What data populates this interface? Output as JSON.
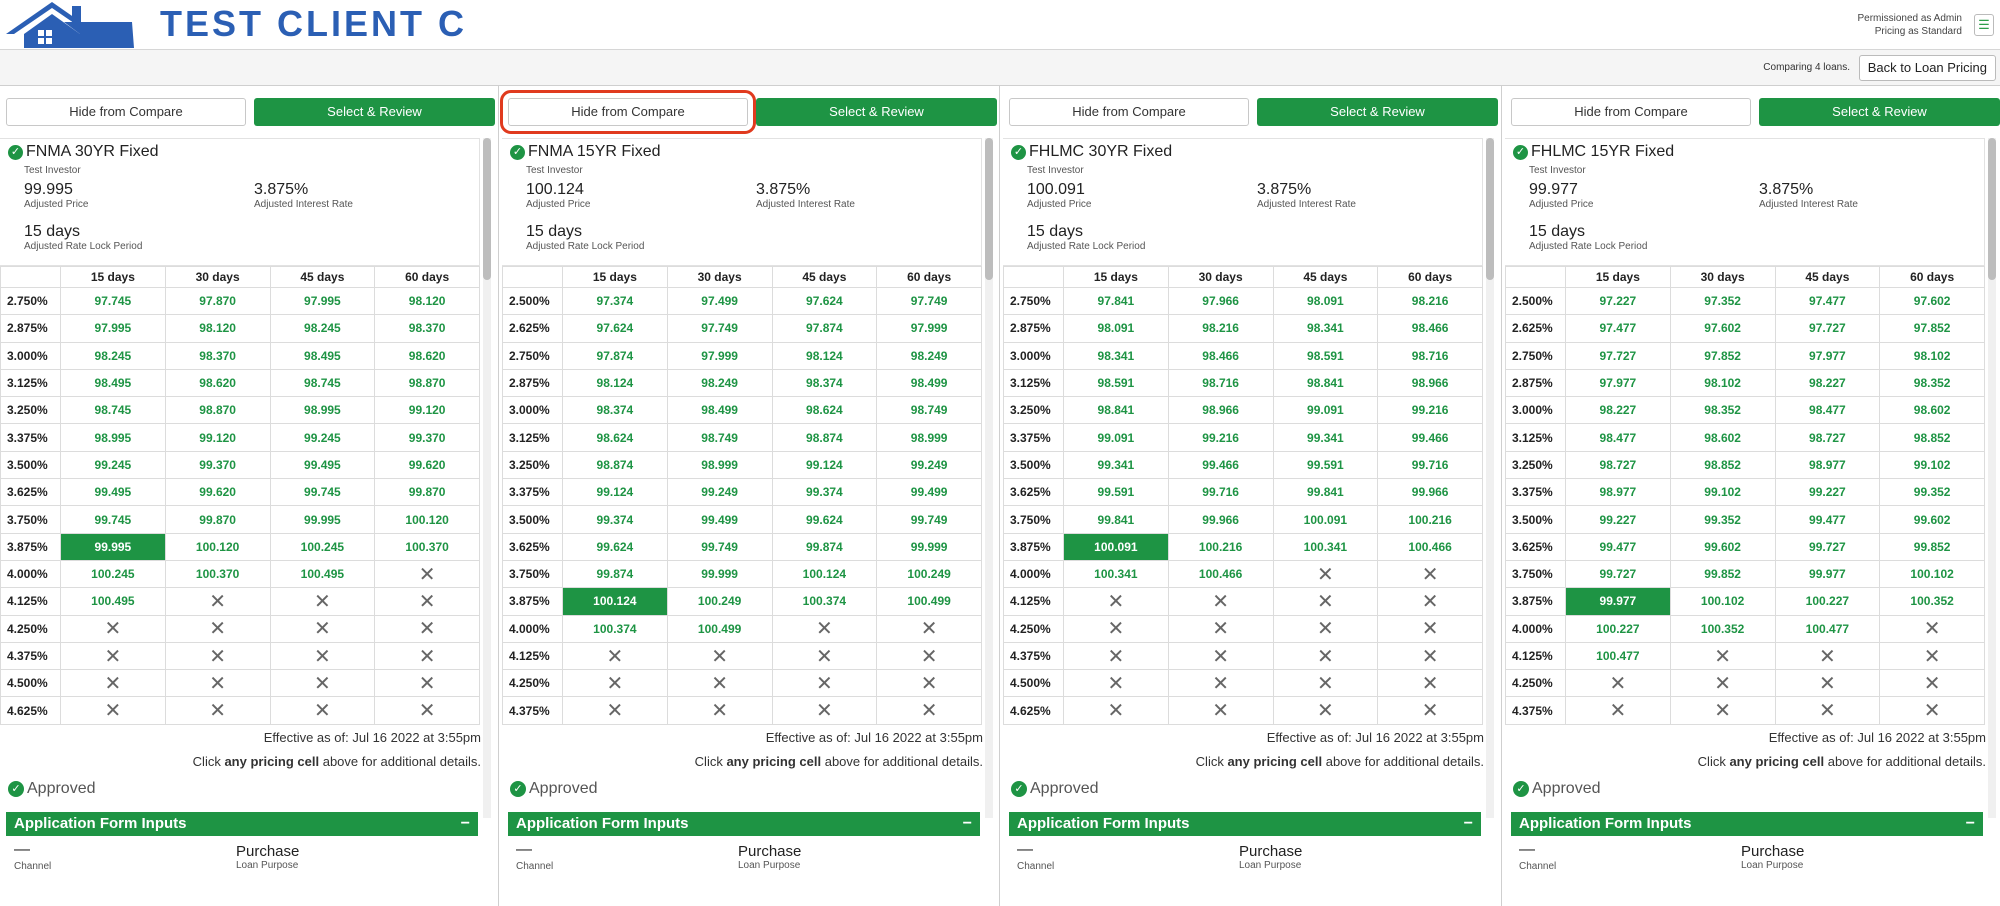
{
  "header": {
    "brand": "TEST CLIENT C",
    "permission_line1": "Permissioned as Admin",
    "permission_line2": "Pricing as Standard",
    "menu_icon": "hamburger-icon"
  },
  "subbar": {
    "comparing_text": "Comparing 4 loans.",
    "back_label": "Back to Loan Pricing"
  },
  "colors": {
    "accent_green": "#1e9444",
    "brand_blue": "#2b5fb4",
    "focus_red": "#e03a1e"
  },
  "common": {
    "hide_label": "Hide from Compare",
    "select_label": "Select & Review",
    "investor": "Test Investor",
    "price_label": "Adjusted Price",
    "rate_label": "Adjusted Interest Rate",
    "lock_label": "Adjusted Rate Lock Period",
    "effective": "Effective as of: Jul 16 2022 at 3:55pm",
    "click_pre": "Click ",
    "click_bold": "any pricing cell",
    "click_post": " above for additional details.",
    "approved": "Approved",
    "app_form_title": "Application Form Inputs",
    "collapse_icon": "−",
    "channel_value": "—",
    "channel_label": "Channel",
    "purpose_value": "Purchase",
    "purpose_label": "Loan Purpose",
    "lock_headers": [
      "15 days",
      "30 days",
      "45 days",
      "60 days"
    ]
  },
  "products": [
    {
      "title": "FNMA 30YR Fixed",
      "price": "99.995",
      "rate": "3.875%",
      "lock": "15 days",
      "rows": [
        [
          "2.750%",
          "97.745",
          "97.870",
          "97.995",
          "98.120"
        ],
        [
          "2.875%",
          "97.995",
          "98.120",
          "98.245",
          "98.370"
        ],
        [
          "3.000%",
          "98.245",
          "98.370",
          "98.495",
          "98.620"
        ],
        [
          "3.125%",
          "98.495",
          "98.620",
          "98.745",
          "98.870"
        ],
        [
          "3.250%",
          "98.745",
          "98.870",
          "98.995",
          "99.120"
        ],
        [
          "3.375%",
          "98.995",
          "99.120",
          "99.245",
          "99.370"
        ],
        [
          "3.500%",
          "99.245",
          "99.370",
          "99.495",
          "99.620"
        ],
        [
          "3.625%",
          "99.495",
          "99.620",
          "99.745",
          "99.870"
        ],
        [
          "3.750%",
          "99.745",
          "99.870",
          "99.995",
          "100.120"
        ],
        [
          "3.875%",
          "99.995",
          "100.120",
          "100.245",
          "100.370"
        ],
        [
          "4.000%",
          "100.245",
          "100.370",
          "100.495",
          "X"
        ],
        [
          "4.125%",
          "100.495",
          "X",
          "X",
          "X"
        ],
        [
          "4.250%",
          "X",
          "X",
          "X",
          "X"
        ],
        [
          "4.375%",
          "X",
          "X",
          "X",
          "X"
        ],
        [
          "4.500%",
          "X",
          "X",
          "X",
          "X"
        ],
        [
          "4.625%",
          "X",
          "X",
          "X",
          "X"
        ]
      ],
      "selected_row": 9
    },
    {
      "title": "FNMA 15YR Fixed",
      "price": "100.124",
      "rate": "3.875%",
      "lock": "15 days",
      "rows": [
        [
          "2.500%",
          "97.374",
          "97.499",
          "97.624",
          "97.749"
        ],
        [
          "2.625%",
          "97.624",
          "97.749",
          "97.874",
          "97.999"
        ],
        [
          "2.750%",
          "97.874",
          "97.999",
          "98.124",
          "98.249"
        ],
        [
          "2.875%",
          "98.124",
          "98.249",
          "98.374",
          "98.499"
        ],
        [
          "3.000%",
          "98.374",
          "98.499",
          "98.624",
          "98.749"
        ],
        [
          "3.125%",
          "98.624",
          "98.749",
          "98.874",
          "98.999"
        ],
        [
          "3.250%",
          "98.874",
          "98.999",
          "99.124",
          "99.249"
        ],
        [
          "3.375%",
          "99.124",
          "99.249",
          "99.374",
          "99.499"
        ],
        [
          "3.500%",
          "99.374",
          "99.499",
          "99.624",
          "99.749"
        ],
        [
          "3.625%",
          "99.624",
          "99.749",
          "99.874",
          "99.999"
        ],
        [
          "3.750%",
          "99.874",
          "99.999",
          "100.124",
          "100.249"
        ],
        [
          "3.875%",
          "100.124",
          "100.249",
          "100.374",
          "100.499"
        ],
        [
          "4.000%",
          "100.374",
          "100.499",
          "X",
          "X"
        ],
        [
          "4.125%",
          "X",
          "X",
          "X",
          "X"
        ],
        [
          "4.250%",
          "X",
          "X",
          "X",
          "X"
        ],
        [
          "4.375%",
          "X",
          "X",
          "X",
          "X"
        ]
      ],
      "selected_row": 11
    },
    {
      "title": "FHLMC 30YR Fixed",
      "price": "100.091",
      "rate": "3.875%",
      "lock": "15 days",
      "rows": [
        [
          "2.750%",
          "97.841",
          "97.966",
          "98.091",
          "98.216"
        ],
        [
          "2.875%",
          "98.091",
          "98.216",
          "98.341",
          "98.466"
        ],
        [
          "3.000%",
          "98.341",
          "98.466",
          "98.591",
          "98.716"
        ],
        [
          "3.125%",
          "98.591",
          "98.716",
          "98.841",
          "98.966"
        ],
        [
          "3.250%",
          "98.841",
          "98.966",
          "99.091",
          "99.216"
        ],
        [
          "3.375%",
          "99.091",
          "99.216",
          "99.341",
          "99.466"
        ],
        [
          "3.500%",
          "99.341",
          "99.466",
          "99.591",
          "99.716"
        ],
        [
          "3.625%",
          "99.591",
          "99.716",
          "99.841",
          "99.966"
        ],
        [
          "3.750%",
          "99.841",
          "99.966",
          "100.091",
          "100.216"
        ],
        [
          "3.875%",
          "100.091",
          "100.216",
          "100.341",
          "100.466"
        ],
        [
          "4.000%",
          "100.341",
          "100.466",
          "X",
          "X"
        ],
        [
          "4.125%",
          "X",
          "X",
          "X",
          "X"
        ],
        [
          "4.250%",
          "X",
          "X",
          "X",
          "X"
        ],
        [
          "4.375%",
          "X",
          "X",
          "X",
          "X"
        ],
        [
          "4.500%",
          "X",
          "X",
          "X",
          "X"
        ],
        [
          "4.625%",
          "X",
          "X",
          "X",
          "X"
        ]
      ],
      "selected_row": 9
    },
    {
      "title": "FHLMC 15YR Fixed",
      "price": "99.977",
      "rate": "3.875%",
      "lock": "15 days",
      "rows": [
        [
          "2.500%",
          "97.227",
          "97.352",
          "97.477",
          "97.602"
        ],
        [
          "2.625%",
          "97.477",
          "97.602",
          "97.727",
          "97.852"
        ],
        [
          "2.750%",
          "97.727",
          "97.852",
          "97.977",
          "98.102"
        ],
        [
          "2.875%",
          "97.977",
          "98.102",
          "98.227",
          "98.352"
        ],
        [
          "3.000%",
          "98.227",
          "98.352",
          "98.477",
          "98.602"
        ],
        [
          "3.125%",
          "98.477",
          "98.602",
          "98.727",
          "98.852"
        ],
        [
          "3.250%",
          "98.727",
          "98.852",
          "98.977",
          "99.102"
        ],
        [
          "3.375%",
          "98.977",
          "99.102",
          "99.227",
          "99.352"
        ],
        [
          "3.500%",
          "99.227",
          "99.352",
          "99.477",
          "99.602"
        ],
        [
          "3.625%",
          "99.477",
          "99.602",
          "99.727",
          "99.852"
        ],
        [
          "3.750%",
          "99.727",
          "99.852",
          "99.977",
          "100.102"
        ],
        [
          "3.875%",
          "99.977",
          "100.102",
          "100.227",
          "100.352"
        ],
        [
          "4.000%",
          "100.227",
          "100.352",
          "100.477",
          "X"
        ],
        [
          "4.125%",
          "100.477",
          "X",
          "X",
          "X"
        ],
        [
          "4.250%",
          "X",
          "X",
          "X",
          "X"
        ],
        [
          "4.375%",
          "X",
          "X",
          "X",
          "X"
        ]
      ],
      "selected_row": 11
    }
  ]
}
